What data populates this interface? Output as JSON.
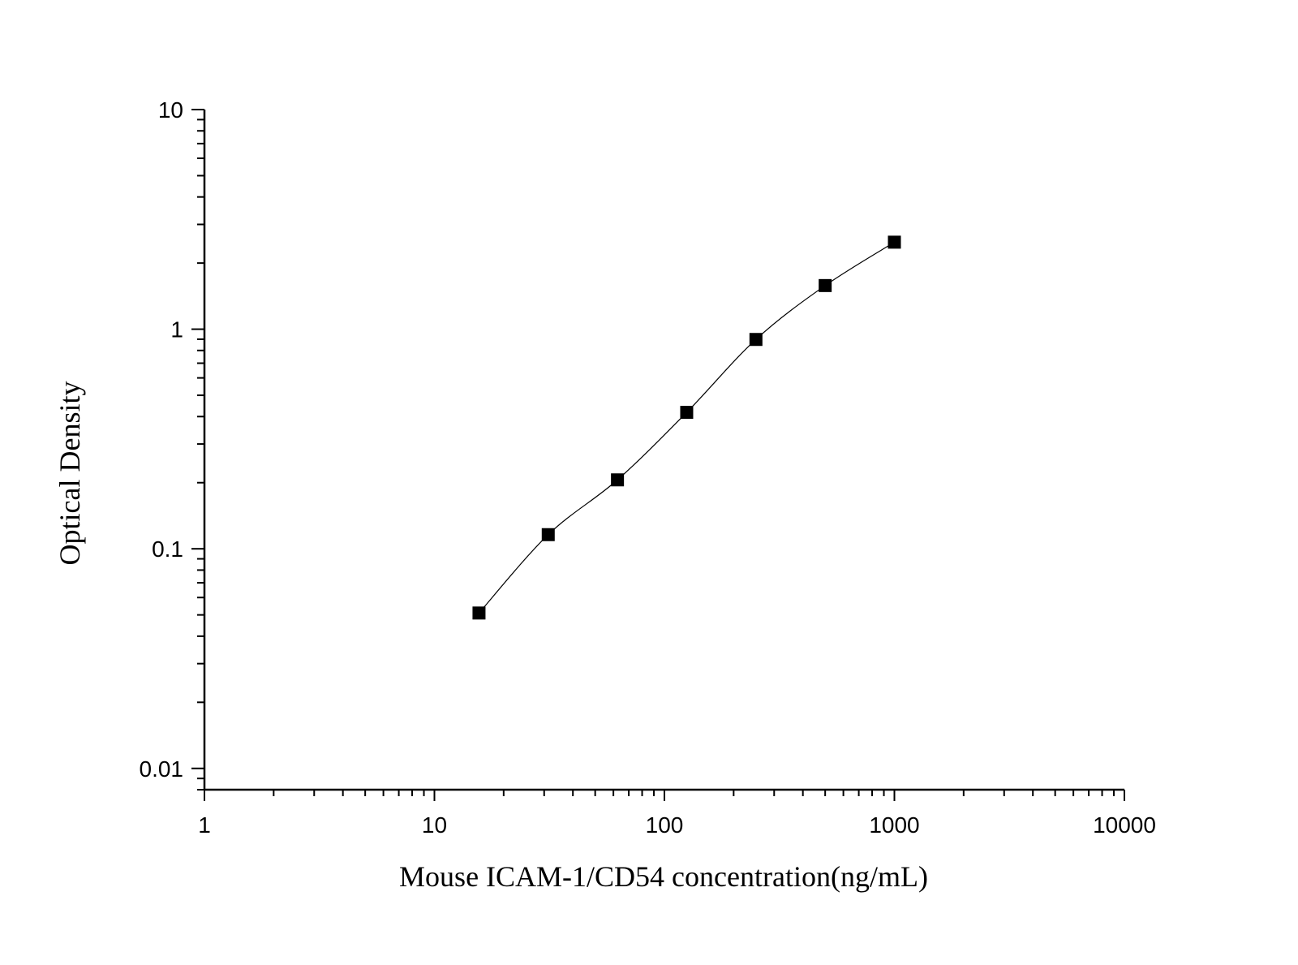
{
  "chart_data": {
    "type": "scatter",
    "xlabel": "Mouse ICAM-1/CD54 concentration(ng/mL)",
    "ylabel": "Optical Density",
    "xscale": "log",
    "yscale": "log",
    "xlim": [
      1,
      10000
    ],
    "ylim": [
      0.008,
      10
    ],
    "x_ticks": [
      1,
      10,
      100,
      1000,
      10000
    ],
    "x_tick_labels": [
      "1",
      "10",
      "100",
      "1000",
      "10000"
    ],
    "y_ticks": [
      0.01,
      0.1,
      1,
      10
    ],
    "y_tick_labels": [
      "0.01",
      "0.1",
      "1",
      "10"
    ],
    "grid": false,
    "legend": "none",
    "marker": "square",
    "color": "#000000",
    "x": [
      15.625,
      31.25,
      62.5,
      125,
      250,
      500,
      1000
    ],
    "y": [
      0.051,
      0.116,
      0.206,
      0.418,
      0.898,
      1.58,
      2.49
    ],
    "fit_curve": "smooth fitted line through points"
  }
}
